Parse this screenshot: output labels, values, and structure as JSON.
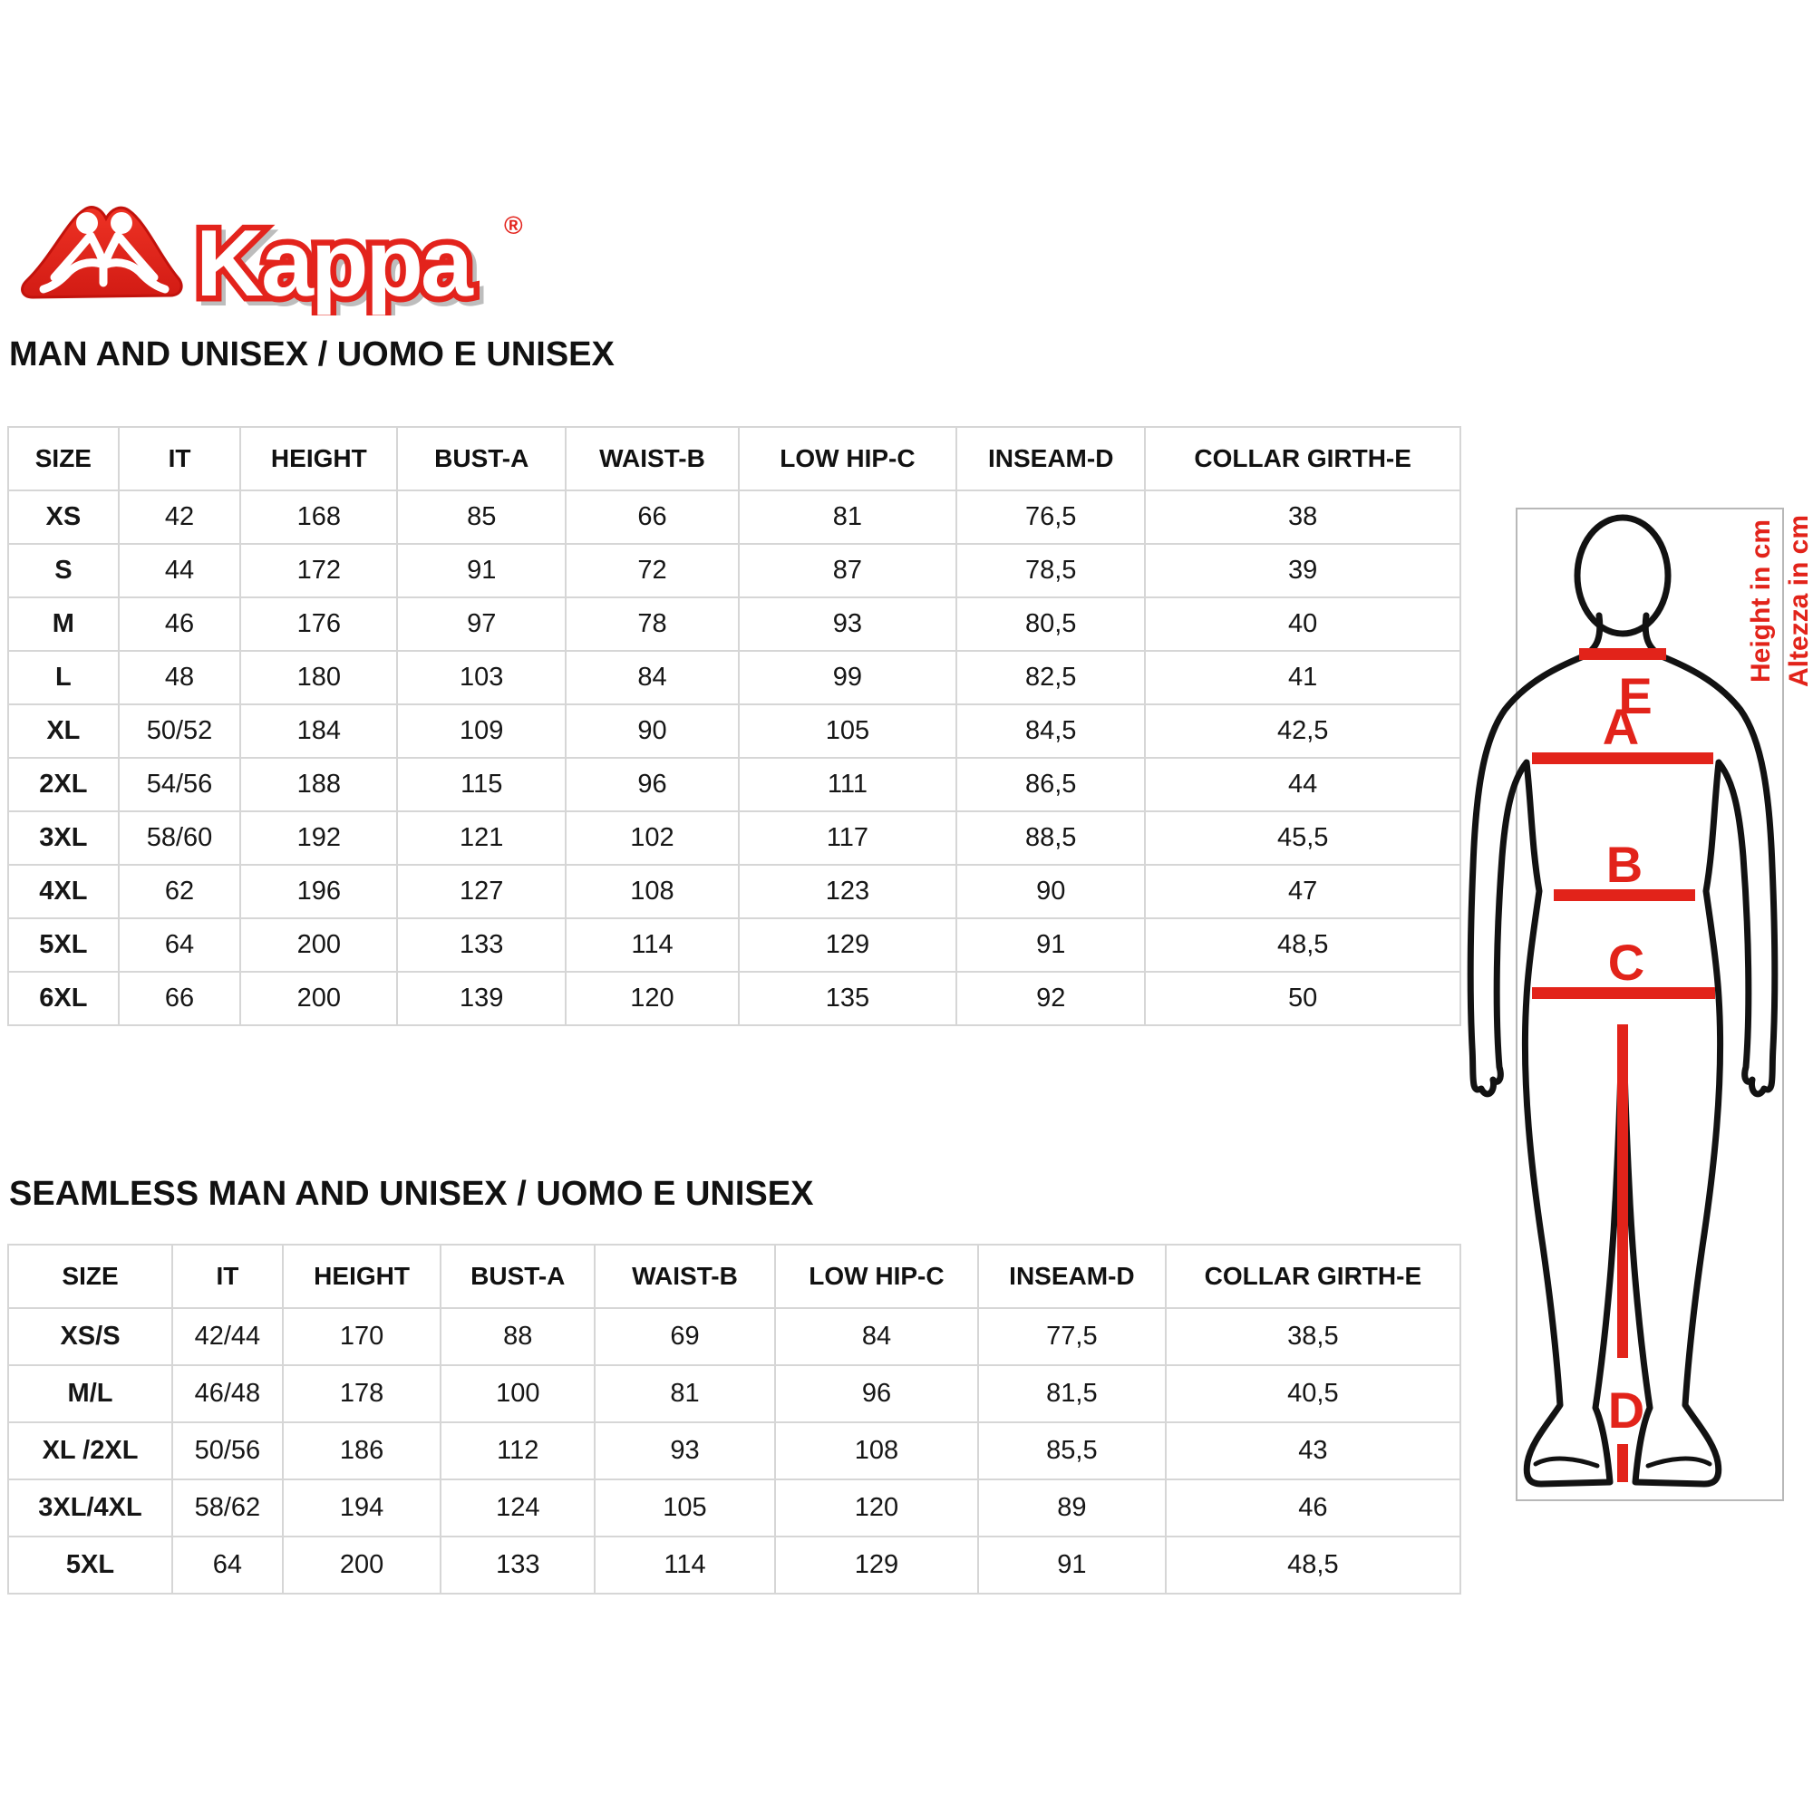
{
  "logo": {
    "brand": "Kappa",
    "registered": "®"
  },
  "sections": [
    {
      "title": "MAN AND UNISEX / UOMO E UNISEX",
      "columns": [
        "SIZE",
        "IT",
        "HEIGHT",
        "BUST-A",
        "WAIST-B",
        "LOW HIP-C",
        "INSEAM-D",
        "COLLAR GIRTH-E"
      ],
      "rows": [
        [
          "XS",
          "42",
          "168",
          "85",
          "66",
          "81",
          "76,5",
          "38"
        ],
        [
          "S",
          "44",
          "172",
          "91",
          "72",
          "87",
          "78,5",
          "39"
        ],
        [
          "M",
          "46",
          "176",
          "97",
          "78",
          "93",
          "80,5",
          "40"
        ],
        [
          "L",
          "48",
          "180",
          "103",
          "84",
          "99",
          "82,5",
          "41"
        ],
        [
          "XL",
          "50/52",
          "184",
          "109",
          "90",
          "105",
          "84,5",
          "42,5"
        ],
        [
          "2XL",
          "54/56",
          "188",
          "115",
          "96",
          "111",
          "86,5",
          "44"
        ],
        [
          "3XL",
          "58/60",
          "192",
          "121",
          "102",
          "117",
          "88,5",
          "45,5"
        ],
        [
          "4XL",
          "62",
          "196",
          "127",
          "108",
          "123",
          "90",
          "47"
        ],
        [
          "5XL",
          "64",
          "200",
          "133",
          "114",
          "129",
          "91",
          "48,5"
        ],
        [
          "6XL",
          "66",
          "200",
          "139",
          "120",
          "135",
          "92",
          "50"
        ]
      ]
    },
    {
      "title": "SEAMLESS MAN AND UNISEX / UOMO E UNISEX",
      "columns": [
        "SIZE",
        "IT",
        "HEIGHT",
        "BUST-A",
        "WAIST-B",
        "LOW HIP-C",
        "INSEAM-D",
        "COLLAR GIRTH-E"
      ],
      "rows": [
        [
          "XS/S",
          "42/44",
          "170",
          "88",
          "69",
          "84",
          "77,5",
          "38,5"
        ],
        [
          "M/L",
          "46/48",
          "178",
          "100",
          "81",
          "96",
          "81,5",
          "40,5"
        ],
        [
          "XL /2XL",
          "50/56",
          "186",
          "112",
          "93",
          "108",
          "85,5",
          "43"
        ],
        [
          "3XL/4XL",
          "58/62",
          "194",
          "124",
          "105",
          "120",
          "89",
          "46"
        ],
        [
          "5XL",
          "64",
          "200",
          "133",
          "114",
          "129",
          "91",
          "48,5"
        ]
      ]
    }
  ],
  "diagram": {
    "labels": {
      "collar": "E",
      "bust": "A",
      "waist": "B",
      "low_hip": "C",
      "inseam": "D"
    },
    "height_note_en": "Height in cm",
    "height_note_it": "Altezza in cm",
    "accent_red": "#e2231a",
    "outline_black": "#121212",
    "frame_gray": "#b8b8b8"
  }
}
